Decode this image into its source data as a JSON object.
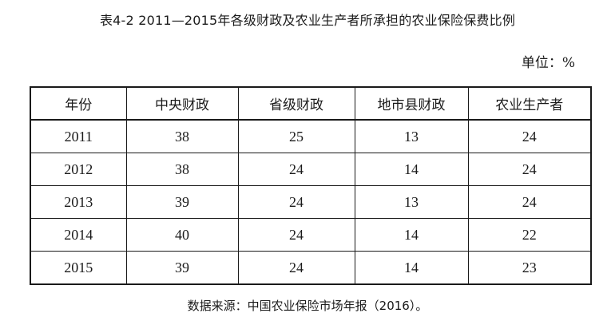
{
  "title": "表4-2 2011—2015年各级财政及农业生产者所承担的农业保险保费比例",
  "unit": "单位：%",
  "table": {
    "headers": [
      "年份",
      "中央财政",
      "省级财政",
      "地市县财政",
      "农业生产者"
    ],
    "rows": [
      [
        "2011",
        "38",
        "25",
        "13",
        "24"
      ],
      [
        "2012",
        "38",
        "24",
        "14",
        "24"
      ],
      [
        "2013",
        "39",
        "24",
        "13",
        "24"
      ],
      [
        "2014",
        "40",
        "24",
        "14",
        "22"
      ],
      [
        "2015",
        "39",
        "24",
        "14",
        "23"
      ]
    ]
  },
  "source": "数据来源：中国农业保险市场年报（2016）。"
}
